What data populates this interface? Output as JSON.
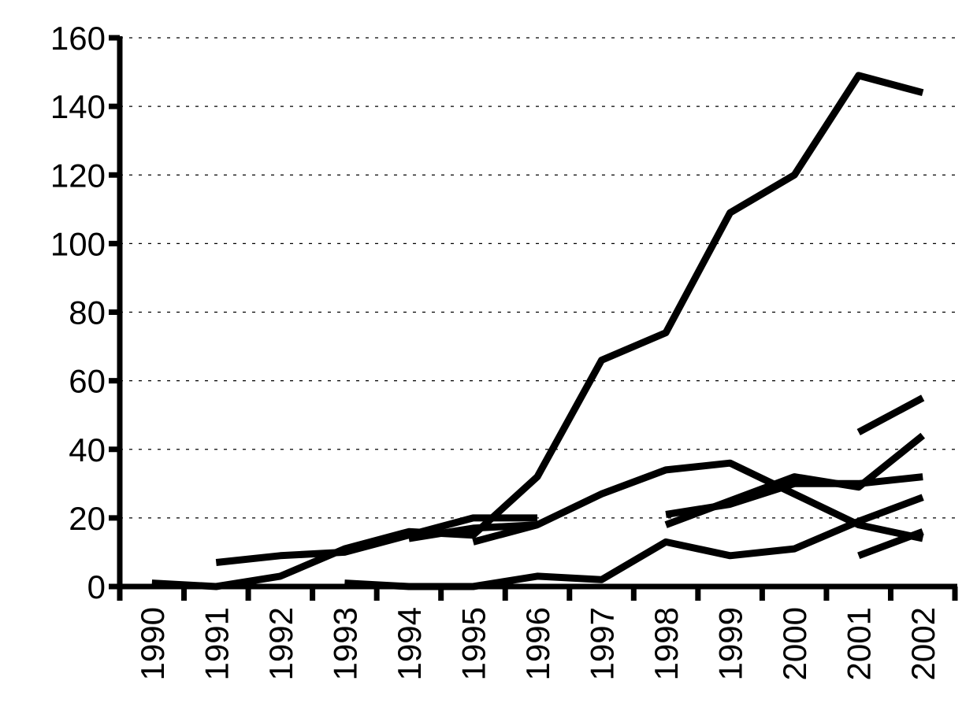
{
  "chart_data": {
    "type": "line",
    "title": "",
    "xlabel": "",
    "ylabel": "",
    "x": [
      "1990",
      "1991",
      "1992",
      "1993",
      "1994",
      "1995",
      "1996",
      "1997",
      "1998",
      "1999",
      "2000",
      "2001",
      "2002"
    ],
    "ylim": [
      0,
      160
    ],
    "yticks": [
      0,
      20,
      40,
      60,
      80,
      100,
      120,
      140,
      160
    ],
    "grid": "horizontal dashed",
    "legend": "none",
    "colors": {
      "line": "#000000",
      "axis": "#000000",
      "background": "#ffffff"
    },
    "series": [
      {
        "values": [
          1,
          0,
          3,
          11,
          16,
          15,
          32,
          66,
          74,
          109,
          120,
          149,
          144
        ]
      },
      {
        "values": [
          null,
          7,
          9,
          10,
          15,
          20,
          20,
          null,
          null,
          null,
          null,
          null,
          null
        ]
      },
      {
        "values": [
          null,
          null,
          null,
          null,
          14,
          17,
          18,
          27,
          34,
          36,
          27,
          18,
          14
        ]
      },
      {
        "values": [
          null,
          null,
          null,
          1,
          0,
          0,
          3,
          2,
          13,
          9,
          11,
          19,
          26
        ]
      },
      {
        "values": [
          null,
          null,
          null,
          null,
          null,
          13,
          18,
          null,
          21,
          24,
          30,
          30,
          32
        ]
      },
      {
        "values": [
          null,
          null,
          null,
          null,
          null,
          null,
          null,
          null,
          18,
          25,
          32,
          29,
          44
        ]
      },
      {
        "values": [
          null,
          null,
          null,
          null,
          null,
          null,
          null,
          null,
          null,
          null,
          null,
          45,
          55
        ]
      },
      {
        "values": [
          null,
          null,
          null,
          null,
          null,
          null,
          null,
          null,
          null,
          null,
          null,
          9,
          16
        ]
      }
    ]
  }
}
